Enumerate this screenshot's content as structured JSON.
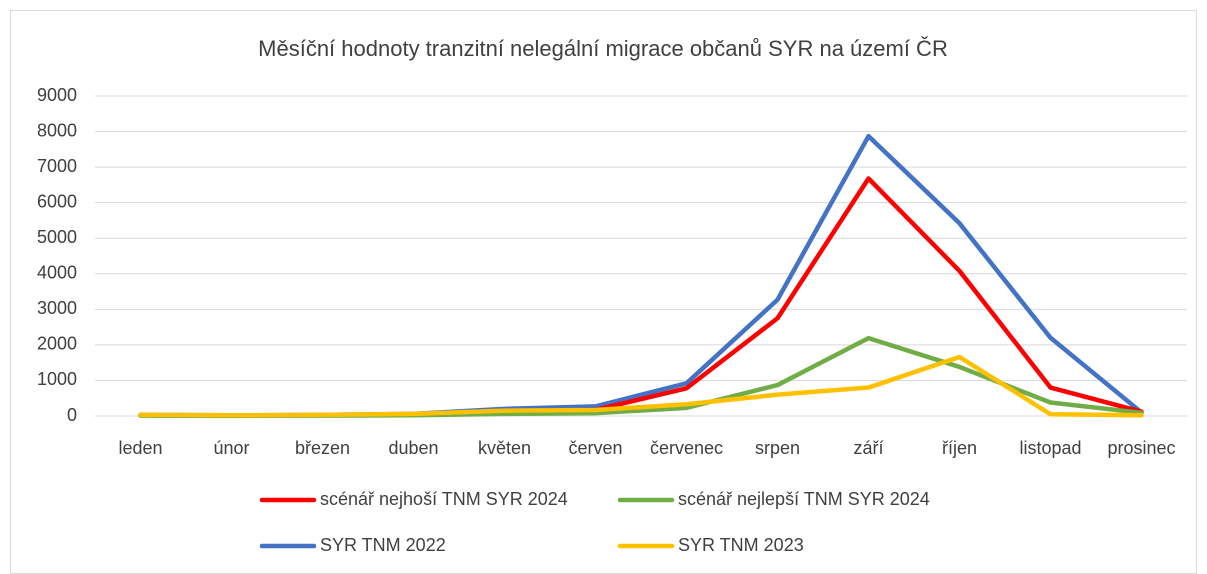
{
  "chart_data": {
    "type": "line",
    "title": "Měsíční hodnoty tranzitní nelegální migrace občanů SYR na území ČR",
    "categories": [
      "leden",
      "únor",
      "březen",
      "duben",
      "květen",
      "červen",
      "červenec",
      "srpen",
      "září",
      "říjen",
      "listopad",
      "prosinec"
    ],
    "series": [
      {
        "name": "scénář nejhoší TNM SYR 2024",
        "color": "#ff0000",
        "values": [
          20,
          10,
          20,
          40,
          140,
          170,
          780,
          2750,
          6680,
          4080,
          800,
          120
        ]
      },
      {
        "name": "scénář nejlepší TNM SYR 2024",
        "color": "#70ad47",
        "values": [
          10,
          5,
          10,
          20,
          60,
          80,
          230,
          870,
          2190,
          1380,
          380,
          90
        ]
      },
      {
        "name": "SYR TNM 2022",
        "color": "#4472c4",
        "values": [
          30,
          20,
          30,
          60,
          200,
          270,
          920,
          3270,
          7870,
          5420,
          2200,
          100
        ]
      },
      {
        "name": "SYR TNM 2023",
        "color": "#ffc000",
        "values": [
          30,
          20,
          30,
          60,
          150,
          170,
          330,
          600,
          800,
          1660,
          50,
          20
        ]
      }
    ],
    "ylim": [
      0,
      9000
    ],
    "yticks": [
      0,
      1000,
      2000,
      3000,
      4000,
      5000,
      6000,
      7000,
      8000,
      9000
    ],
    "grid": true
  }
}
